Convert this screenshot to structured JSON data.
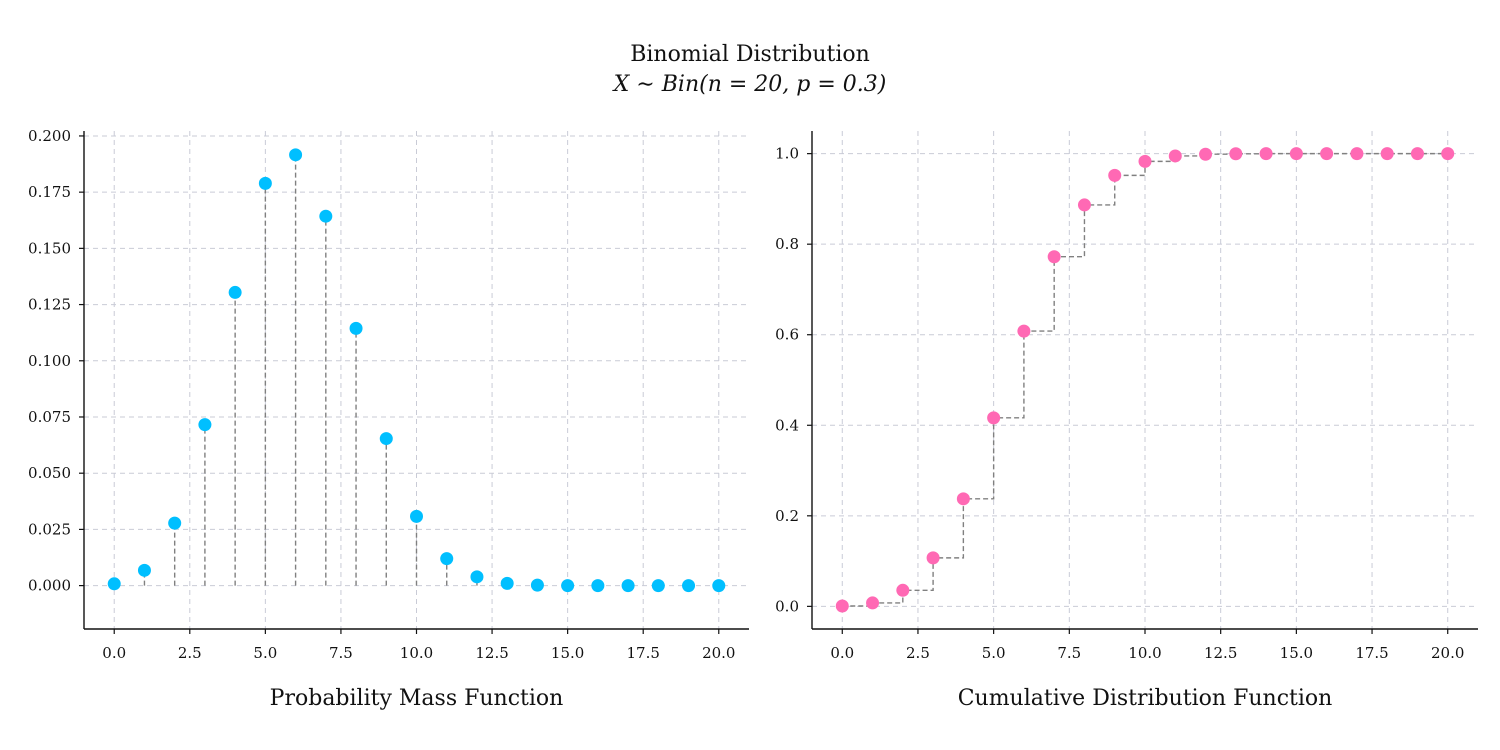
{
  "figure": {
    "title_line1": "Binomial Distribution",
    "title_line2": "X ∼ Bin(n = 20, p = 0.3)"
  },
  "chart_data": [
    {
      "type": "stem",
      "name": "pmf",
      "xlabel": "Probability Mass Function",
      "ylabel": "",
      "x": [
        0,
        1,
        2,
        3,
        4,
        5,
        6,
        7,
        8,
        9,
        10,
        11,
        12,
        13,
        14,
        15,
        16,
        17,
        18,
        19,
        20
      ],
      "values": [
        0.0008,
        0.0068,
        0.0278,
        0.0716,
        0.1304,
        0.1789,
        0.1916,
        0.1643,
        0.1144,
        0.0654,
        0.0308,
        0.012,
        0.0039,
        0.001,
        0.0002,
        0.0,
        0.0,
        0.0,
        0.0,
        0.0,
        0.0
      ],
      "xlim": [
        -1,
        21
      ],
      "ylim": [
        -0.0193,
        0.2022
      ],
      "xticks": [
        0.0,
        2.5,
        5.0,
        7.5,
        10.0,
        12.5,
        15.0,
        17.5,
        20.0
      ],
      "xtick_labels": [
        "0.0",
        "2.5",
        "5.0",
        "7.5",
        "10.0",
        "12.5",
        "15.0",
        "17.5",
        "20.0"
      ],
      "yticks": [
        0.0,
        0.025,
        0.05,
        0.075,
        0.1,
        0.125,
        0.15,
        0.175,
        0.2
      ],
      "ytick_labels": [
        "0.000",
        "0.025",
        "0.050",
        "0.075",
        "0.100",
        "0.125",
        "0.150",
        "0.175",
        "0.200"
      ],
      "grid": true,
      "marker_color": "#00bfff",
      "stem_color": "#808080"
    },
    {
      "type": "step",
      "name": "cdf",
      "xlabel": "Cumulative Distribution Function",
      "ylabel": "",
      "x": [
        0,
        1,
        2,
        3,
        4,
        5,
        6,
        7,
        8,
        9,
        10,
        11,
        12,
        13,
        14,
        15,
        16,
        17,
        18,
        19,
        20
      ],
      "values": [
        0.0008,
        0.0076,
        0.0355,
        0.1071,
        0.2375,
        0.4164,
        0.608,
        0.7723,
        0.8867,
        0.952,
        0.9829,
        0.9949,
        0.9987,
        0.9997,
        1.0,
        1.0,
        1.0,
        1.0,
        1.0,
        1.0,
        1.0
      ],
      "xlim": [
        -1,
        21
      ],
      "ylim": [
        -0.05,
        1.05
      ],
      "xticks": [
        0.0,
        2.5,
        5.0,
        7.5,
        10.0,
        12.5,
        15.0,
        17.5,
        20.0
      ],
      "xtick_labels": [
        "0.0",
        "2.5",
        "5.0",
        "7.5",
        "10.0",
        "12.5",
        "15.0",
        "17.5",
        "20.0"
      ],
      "yticks": [
        0.0,
        0.2,
        0.4,
        0.6,
        0.8,
        1.0
      ],
      "ytick_labels": [
        "0.0",
        "0.2",
        "0.4",
        "0.6",
        "0.8",
        "1.0"
      ],
      "grid": true,
      "marker_color": "#ff69b4",
      "stem_color": "#808080"
    }
  ]
}
